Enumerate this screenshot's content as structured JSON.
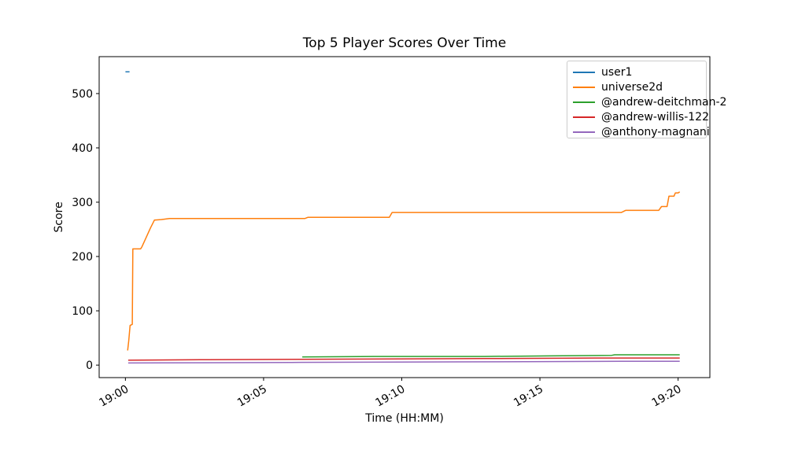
{
  "chart_data": {
    "type": "line",
    "title": "Top 5 Player Scores Over Time",
    "xlabel": "Time (HH:MM)",
    "ylabel": "Score",
    "x_unit": "minutes after 19:00",
    "xlim": [
      -0.95,
      21.15
    ],
    "ylim": [
      -23,
      568
    ],
    "grid": false,
    "legend_position": "upper right",
    "x_ticks": [
      {
        "value": 0,
        "label": "19:00"
      },
      {
        "value": 5,
        "label": "19:05"
      },
      {
        "value": 10,
        "label": "19:10"
      },
      {
        "value": 15,
        "label": "19:15"
      },
      {
        "value": 20,
        "label": "19:20"
      }
    ],
    "y_ticks": [
      {
        "value": 0,
        "label": "0"
      },
      {
        "value": 100,
        "label": "100"
      },
      {
        "value": 200,
        "label": "200"
      },
      {
        "value": 300,
        "label": "300"
      },
      {
        "value": 400,
        "label": "400"
      },
      {
        "value": 500,
        "label": "500"
      }
    ],
    "series": [
      {
        "name": "user1",
        "color": "#1f77b4",
        "points": [
          [
            0.0,
            540
          ],
          [
            0.15,
            540
          ]
        ]
      },
      {
        "name": "universe2d",
        "color": "#ff7f0e",
        "points": [
          [
            0.08,
            27
          ],
          [
            0.12,
            45
          ],
          [
            0.17,
            73
          ],
          [
            0.25,
            75
          ],
          [
            0.27,
            214
          ],
          [
            0.55,
            214
          ],
          [
            0.6,
            218
          ],
          [
            0.75,
            235
          ],
          [
            0.9,
            252
          ],
          [
            1.05,
            267
          ],
          [
            1.3,
            268
          ],
          [
            1.6,
            270
          ],
          [
            6.5,
            270
          ],
          [
            6.6,
            272
          ],
          [
            9.55,
            272
          ],
          [
            9.65,
            281
          ],
          [
            17.95,
            281
          ],
          [
            18.1,
            285
          ],
          [
            19.3,
            285
          ],
          [
            19.4,
            292
          ],
          [
            19.6,
            292
          ],
          [
            19.67,
            311
          ],
          [
            19.85,
            311
          ],
          [
            19.9,
            317
          ],
          [
            20.0,
            317
          ],
          [
            20.06,
            319
          ]
        ]
      },
      {
        "name": "@andrew-deitchman-2",
        "color": "#2ca02c",
        "points": [
          [
            6.4,
            15
          ],
          [
            9.0,
            16
          ],
          [
            13.0,
            16
          ],
          [
            15.4,
            17
          ],
          [
            17.6,
            18
          ],
          [
            17.7,
            19
          ],
          [
            20.06,
            19
          ]
        ]
      },
      {
        "name": "@andrew-willis-122",
        "color": "#d62728",
        "points": [
          [
            0.1,
            9
          ],
          [
            3.0,
            10
          ],
          [
            8.0,
            11
          ],
          [
            13.0,
            12
          ],
          [
            17.0,
            13
          ],
          [
            20.06,
            13
          ]
        ]
      },
      {
        "name": "@anthony-magnani",
        "color": "#9467bd",
        "points": [
          [
            0.1,
            4
          ],
          [
            6.0,
            5
          ],
          [
            12.0,
            6
          ],
          [
            18.0,
            7
          ],
          [
            20.06,
            7
          ]
        ]
      }
    ],
    "colors": {
      "background": "#ffffff",
      "text": "#000000",
      "spine": "#000000",
      "legend_border": "#cccccc"
    }
  }
}
